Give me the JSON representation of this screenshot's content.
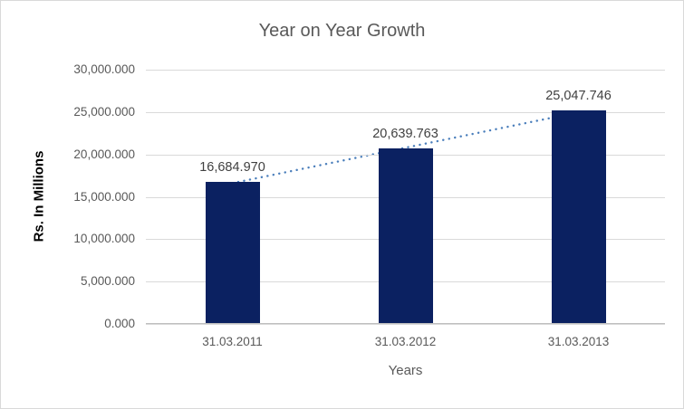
{
  "chart_data": {
    "type": "bar",
    "title": "Year on Year Growth",
    "xlabel": "Years",
    "ylabel": "Rs. In Millions",
    "categories": [
      "31.03.2011",
      "31.03.2012",
      "31.03.2013"
    ],
    "values": [
      16684.97,
      20639.763,
      25047.746
    ],
    "value_labels": [
      "16,684.970",
      "20,639.763",
      "25,047.746"
    ],
    "ylim": [
      0,
      30000
    ],
    "ytick_values": [
      0,
      5000,
      10000,
      15000,
      20000,
      25000,
      30000
    ],
    "ytick_labels": [
      "0.000",
      "5,000.000",
      "10,000.000",
      "15,000.000",
      "20,000.000",
      "25,000.000",
      "30,000.000"
    ],
    "grid": "horizontal",
    "legend": "none",
    "trendline": "linear-dotted",
    "colors": {
      "bar": "#0b2161",
      "trendline": "#4a7ebb",
      "gridline": "#d9d9d9",
      "axis_line": "#bfbfbf",
      "title_text": "#595959",
      "tick_text": "#595959",
      "data_label_text": "#404040",
      "axis_title_text": "#000000",
      "chart_border": "#d9d9d9"
    }
  }
}
